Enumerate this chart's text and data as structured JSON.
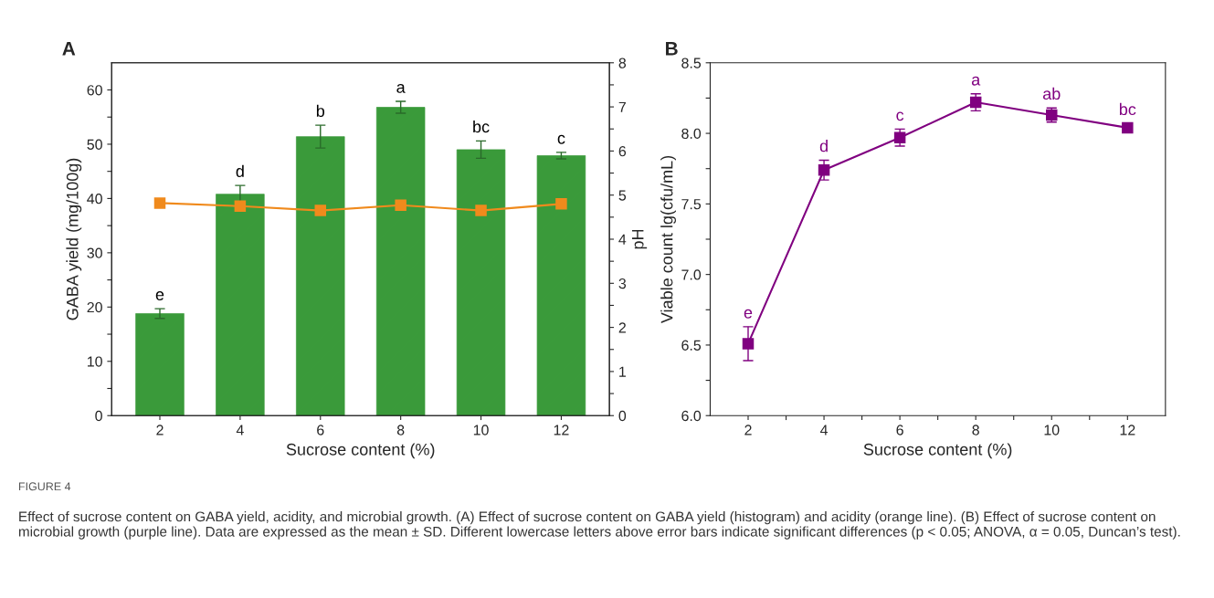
{
  "chart_data": [
    {
      "type": "bar",
      "title": "A",
      "categories": [
        "2",
        "4",
        "6",
        "8",
        "10",
        "12"
      ],
      "xlabel": "Sucrose content (%)",
      "ylabel": "GABA yield (mg/100g)",
      "y2label": "pH",
      "series": [
        {
          "type": "bar",
          "color": "#3a9a3a",
          "values": [
            18.8,
            40.8,
            51.4,
            56.8,
            49.0,
            47.9
          ],
          "errors": [
            0.9,
            1.6,
            2.1,
            1.1,
            1.6,
            0.6
          ]
        },
        {
          "type": "line",
          "axis": "y2",
          "color": "#f08a1c",
          "marker": "square",
          "values": [
            4.82,
            4.75,
            4.65,
            4.77,
            4.65,
            4.8
          ]
        }
      ],
      "ylim": [
        0,
        65
      ],
      "yticks": [
        0,
        {
          "value": 5,
          "label": null
        },
        10,
        {
          "value": 15,
          "label": null
        },
        20,
        {
          "value": 25,
          "label": null
        },
        30,
        {
          "value": 35,
          "label": null
        },
        40,
        {
          "value": 45,
          "label": null
        },
        50,
        {
          "value": 55,
          "label": null
        },
        60
      ],
      "y2lim": [
        0,
        8
      ],
      "y2ticks": [
        0,
        {
          "value": 0.5,
          "label": null
        },
        1,
        {
          "value": 1.5,
          "label": null
        },
        2,
        {
          "value": 2.5,
          "label": null
        },
        3,
        {
          "value": 3.5,
          "label": null
        },
        4,
        {
          "value": 4.5,
          "label": null
        },
        5,
        {
          "value": 5.5,
          "label": null
        },
        6,
        {
          "value": 6.5,
          "label": null
        },
        7,
        {
          "value": 7.5,
          "label": null
        },
        8
      ],
      "annotations": [
        {
          "text": "e",
          "x": "2",
          "y": 19.7
        },
        {
          "text": "d",
          "x": "4",
          "y": 42.4
        },
        {
          "text": "b",
          "x": "6",
          "y": 53.5
        },
        {
          "text": "a",
          "x": "8",
          "y": 57.9
        },
        {
          "text": "bc",
          "x": "10",
          "y": 50.6
        },
        {
          "text": "c",
          "x": "12",
          "y": 48.5
        },
        "FIGURE 4",
        "Effect of sucrose content on GABA yield, acidity, and microbial growth. (A) Effect of sucrose content on GABA yield (histogram) and acidity (orange line). (B) Effect of sucrose content on microbial growth (purple line). Data are expressed as the mean ± SD. Different lowercase letters above error bars indicate significant differences (p < 0.05; ANOVA, α = 0.05, Duncan’s test)."
      ]
    },
    {
      "type": "line",
      "title": "B",
      "x": [
        2,
        4,
        6,
        8,
        10,
        12
      ],
      "xlabel": "Sucrose content (%)",
      "ylabel": "Viable count lg(cfu/mL)",
      "marker": "square",
      "series": [
        {
          "color": "#800080",
          "values": [
            6.51,
            7.74,
            7.97,
            8.22,
            8.13,
            8.04
          ],
          "errors": [
            0.12,
            0.07,
            0.06,
            0.06,
            0.05,
            0.03
          ]
        }
      ],
      "xlim": [
        1,
        13
      ],
      "xticks": [
        2,
        {
          "value": 3,
          "label": null
        },
        4,
        {
          "value": 5,
          "label": null
        },
        6,
        {
          "value": 7,
          "label": null
        },
        8,
        {
          "value": 9,
          "label": null
        },
        10,
        {
          "value": 11,
          "label": null
        },
        12
      ],
      "ylim": [
        6.0,
        8.5
      ],
      "yticks": [
        {
          "value": 6.0,
          "label": "6.0"
        },
        {
          "value": 6.25,
          "label": null
        },
        {
          "value": 6.5,
          "label": "6.5"
        },
        {
          "value": 6.75,
          "label": null
        },
        {
          "value": 7.0,
          "label": "7.0"
        },
        {
          "value": 7.25,
          "label": null
        },
        {
          "value": 7.5,
          "label": "7.5"
        },
        {
          "value": 7.75,
          "label": null
        },
        {
          "value": 8.0,
          "label": "8.0"
        },
        {
          "value": 8.25,
          "label": null
        },
        {
          "value": 8.5,
          "label": "8.5"
        }
      ],
      "annotations": [
        {
          "text": "e",
          "x": 2,
          "y": 6.63
        },
        {
          "text": "d",
          "x": 4,
          "y": 7.81
        },
        {
          "text": "c",
          "x": 6,
          "y": 8.03
        },
        {
          "text": "a",
          "x": 8,
          "y": 8.28
        },
        {
          "text": "ab",
          "x": 10,
          "y": 8.18
        },
        {
          "text": "bc",
          "x": 12,
          "y": 8.07
        }
      ]
    }
  ]
}
